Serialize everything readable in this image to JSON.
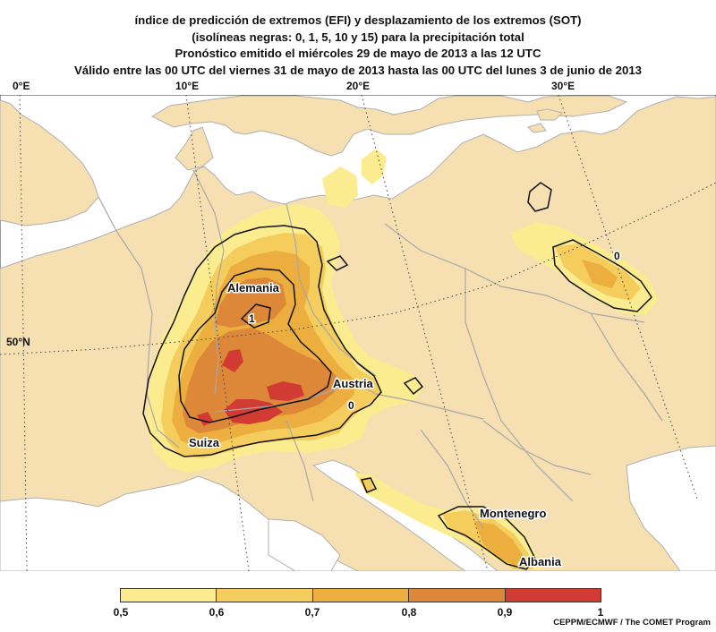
{
  "title": {
    "line1": "índice de predicción de extremos (EFI) y desplazamiento de los extremos (SOT)",
    "line2": "(isolíneas negras: 0, 1, 5, 10 y 15) para la precipitación total",
    "line3": "Pronóstico emitido el miércoles 29 de mayo de 2013 a las 12 UTC",
    "line4": "Válido entre las 00 UTC del viernes 31 de mayo de 2013 hasta las 00 UTC del lunes 3 de junio de 2013"
  },
  "axes": {
    "longitudes": [
      "0°E",
      "10°E",
      "20°E",
      "30°E"
    ],
    "latitudes": [
      "50°N"
    ]
  },
  "regions": [
    "Alemania",
    "Austria",
    "Suiza",
    "Montenegro",
    "Albania"
  ],
  "contour_labels": [
    "1",
    "0",
    "0"
  ],
  "legend": {
    "ticks": [
      "0,5",
      "0,6",
      "0,7",
      "0,8",
      "0,9",
      "1"
    ],
    "colors": [
      "#fbec8f",
      "#f4cd5c",
      "#ecae3e",
      "#dd8739",
      "#d23b33"
    ]
  },
  "credit": "CEPPM/ECMWF / The COMET Program",
  "colors": {
    "land": "#f6dfb1",
    "sea": "#ffffff",
    "border": "#a8a8a8",
    "contour": "#111111"
  }
}
